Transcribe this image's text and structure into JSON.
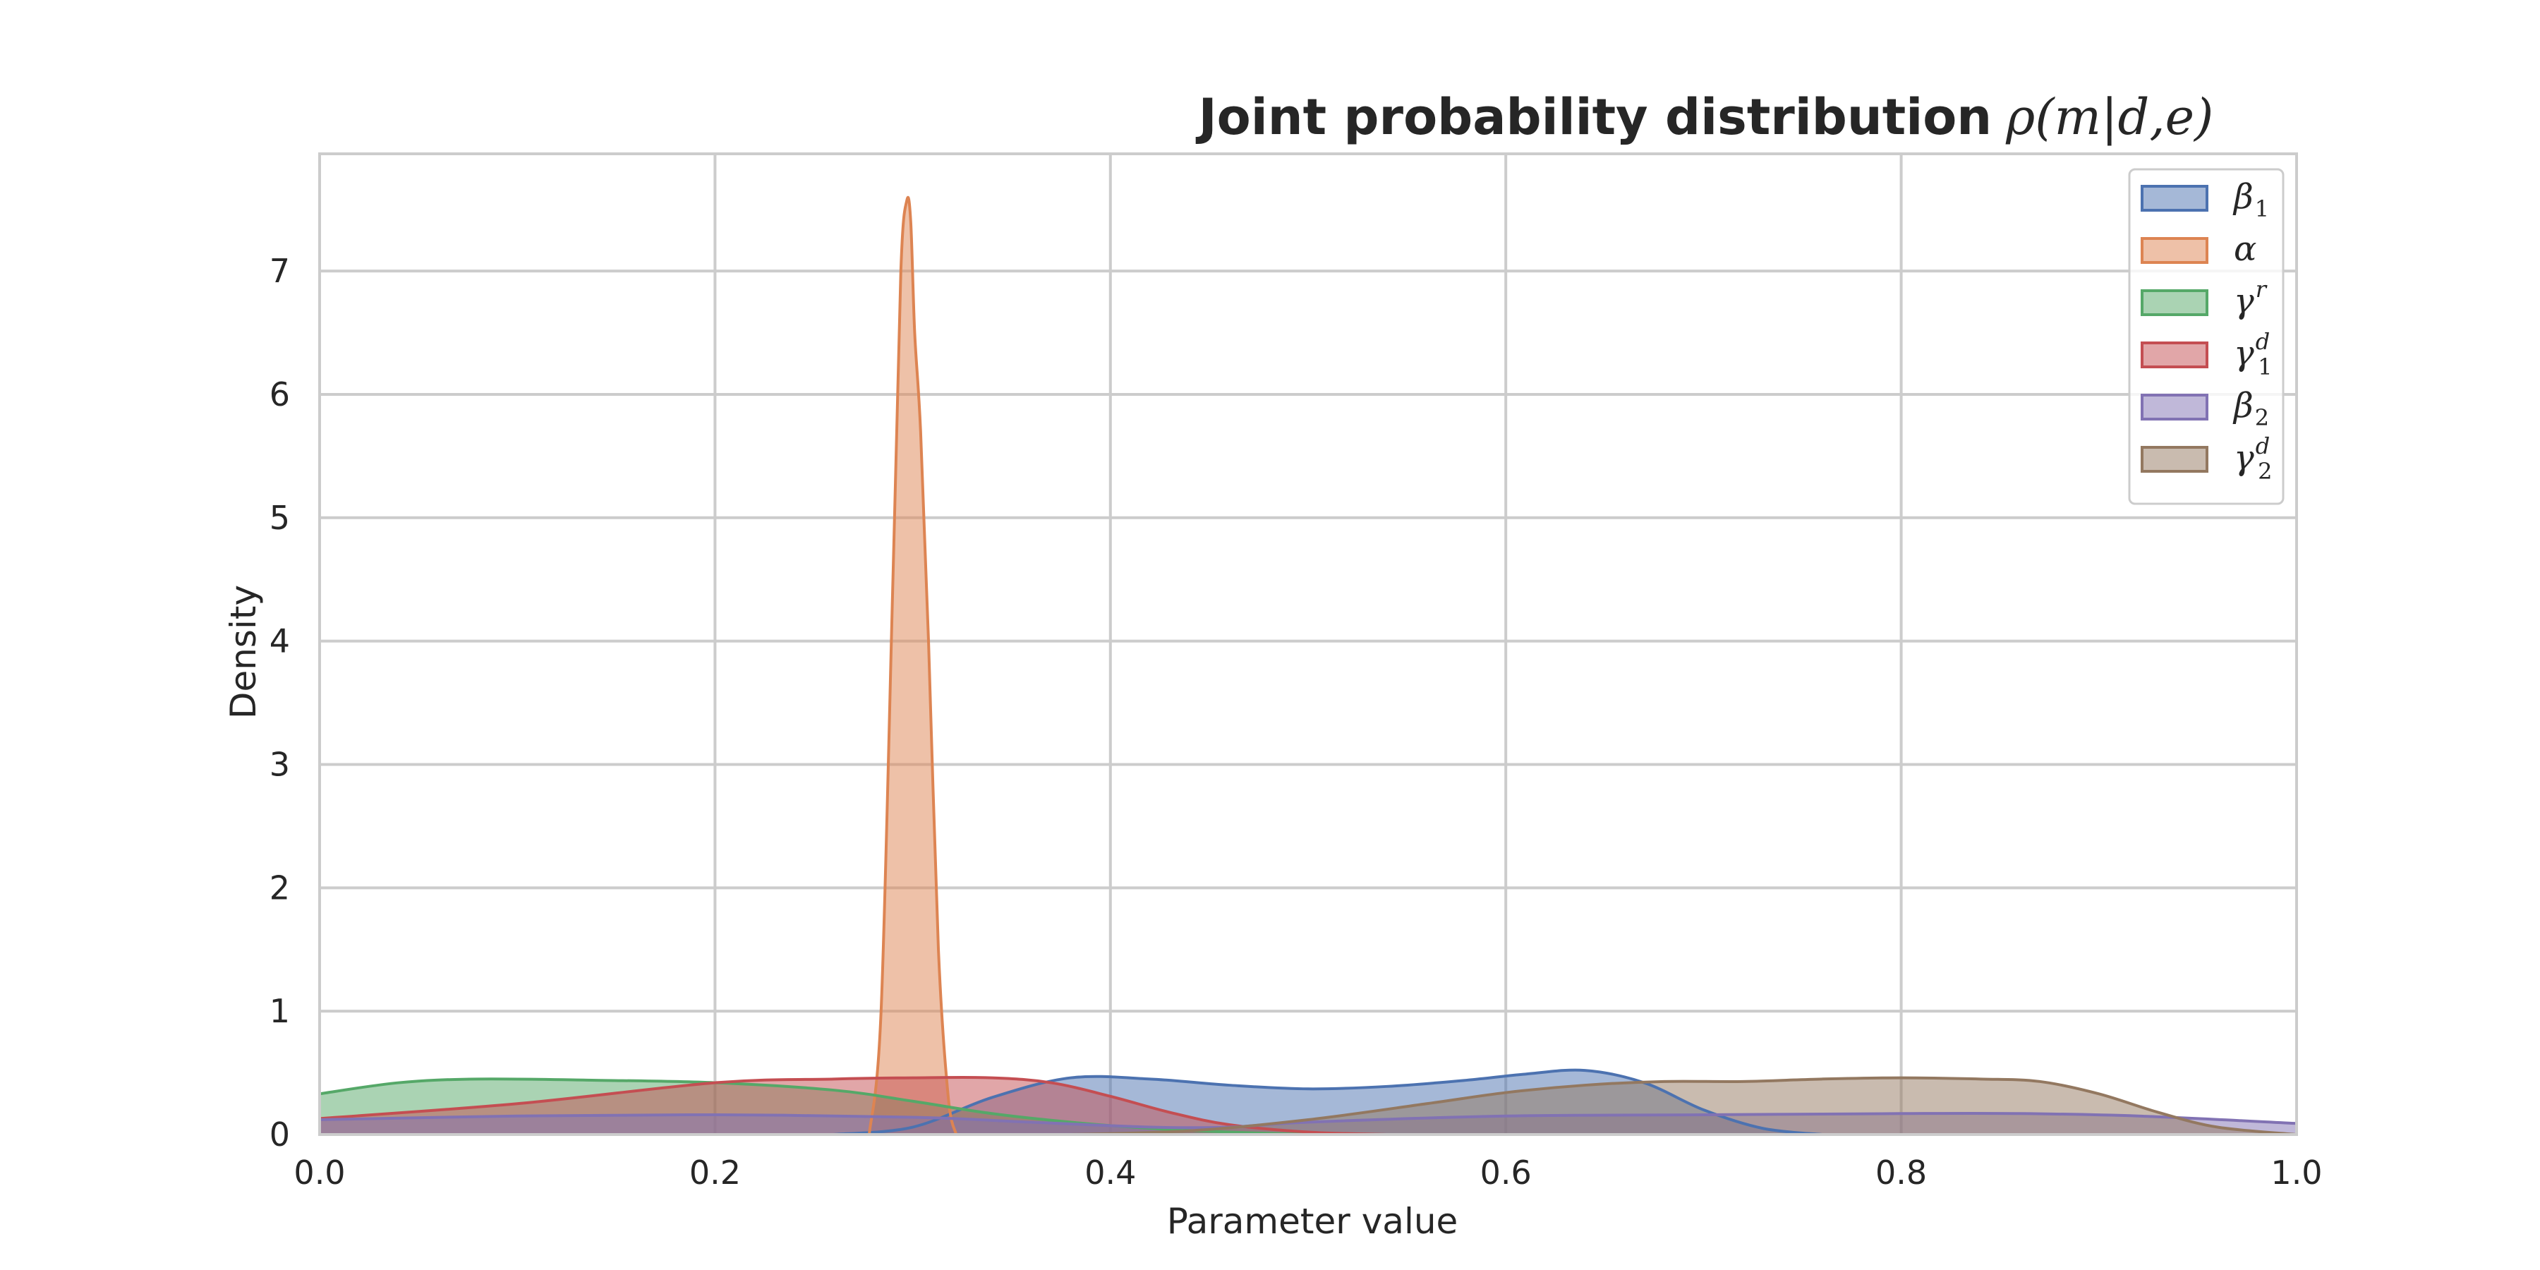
{
  "chart_data": {
    "type": "area",
    "title": "Joint probability distribution",
    "title_math": "ρ(m|d,e)",
    "xlabel": "Parameter value",
    "ylabel": "Density",
    "xlim": [
      0.0,
      1.0
    ],
    "ylim": [
      0,
      7.95
    ],
    "xticks": [
      0.0,
      0.2,
      0.4,
      0.6,
      0.8,
      1.0
    ],
    "xtick_labels": [
      "0.0",
      "0.2",
      "0.4",
      "0.6",
      "0.8",
      "1.0"
    ],
    "yticks": [
      0,
      1,
      2,
      3,
      4,
      5,
      6,
      7
    ],
    "ytick_labels": [
      "0",
      "1",
      "2",
      "3",
      "4",
      "5",
      "6",
      "7"
    ],
    "grid": true,
    "legend_position": "top-right",
    "series": [
      {
        "name": "β1",
        "symbol": "β",
        "sub": "1",
        "sup": "",
        "color": "#4c72b0",
        "x": [
          0.26,
          0.3,
          0.34,
          0.38,
          0.42,
          0.46,
          0.5,
          0.54,
          0.58,
          0.61,
          0.64,
          0.67,
          0.7,
          0.73,
          0.76
        ],
        "y": [
          0.0,
          0.06,
          0.3,
          0.46,
          0.45,
          0.4,
          0.37,
          0.39,
          0.44,
          0.49,
          0.52,
          0.42,
          0.2,
          0.05,
          0.0
        ]
      },
      {
        "name": "α",
        "symbol": "α",
        "sub": "",
        "sup": "",
        "color": "#dd8452",
        "x": [
          0.278,
          0.284,
          0.29,
          0.294,
          0.297,
          0.299,
          0.301,
          0.304,
          0.308,
          0.313,
          0.318,
          0.322
        ],
        "y": [
          0.0,
          1.0,
          4.5,
          7.0,
          7.57,
          7.4,
          6.5,
          5.7,
          4.0,
          1.5,
          0.3,
          0.0
        ]
      },
      {
        "name": "γr",
        "symbol": "γ",
        "sub": "",
        "sup": "r",
        "color": "#55a868",
        "x": [
          0.0,
          0.04,
          0.08,
          0.14,
          0.2,
          0.26,
          0.3,
          0.34,
          0.38,
          0.42,
          0.46,
          0.5
        ],
        "y": [
          0.33,
          0.42,
          0.45,
          0.44,
          0.42,
          0.36,
          0.27,
          0.17,
          0.1,
          0.05,
          0.02,
          0.0
        ]
      },
      {
        "name": "γ1d",
        "symbol": "γ",
        "sub": "1",
        "sup": "d",
        "color": "#c44e52",
        "x": [
          0.0,
          0.1,
          0.2,
          0.26,
          0.3,
          0.34,
          0.37,
          0.4,
          0.43,
          0.46,
          0.5,
          0.54
        ],
        "y": [
          0.13,
          0.25,
          0.42,
          0.45,
          0.46,
          0.46,
          0.42,
          0.31,
          0.18,
          0.08,
          0.02,
          0.0
        ]
      },
      {
        "name": "β2",
        "symbol": "β",
        "sub": "2",
        "sup": "",
        "color": "#8172b3",
        "x": [
          0.0,
          0.1,
          0.2,
          0.3,
          0.36,
          0.42,
          0.46,
          0.5,
          0.6,
          0.7,
          0.8,
          0.86,
          0.92,
          1.0
        ],
        "y": [
          0.12,
          0.15,
          0.16,
          0.14,
          0.1,
          0.06,
          0.06,
          0.1,
          0.15,
          0.16,
          0.17,
          0.17,
          0.15,
          0.09
        ]
      },
      {
        "name": "γ2d",
        "symbol": "γ",
        "sub": "2",
        "sup": "d",
        "color": "#937860",
        "x": [
          0.38,
          0.44,
          0.5,
          0.56,
          0.6,
          0.64,
          0.68,
          0.72,
          0.76,
          0.8,
          0.84,
          0.87,
          0.9,
          0.93,
          0.96,
          1.0
        ],
        "y": [
          0.0,
          0.03,
          0.12,
          0.25,
          0.34,
          0.4,
          0.43,
          0.43,
          0.45,
          0.46,
          0.45,
          0.43,
          0.33,
          0.18,
          0.06,
          0.0
        ]
      }
    ]
  }
}
